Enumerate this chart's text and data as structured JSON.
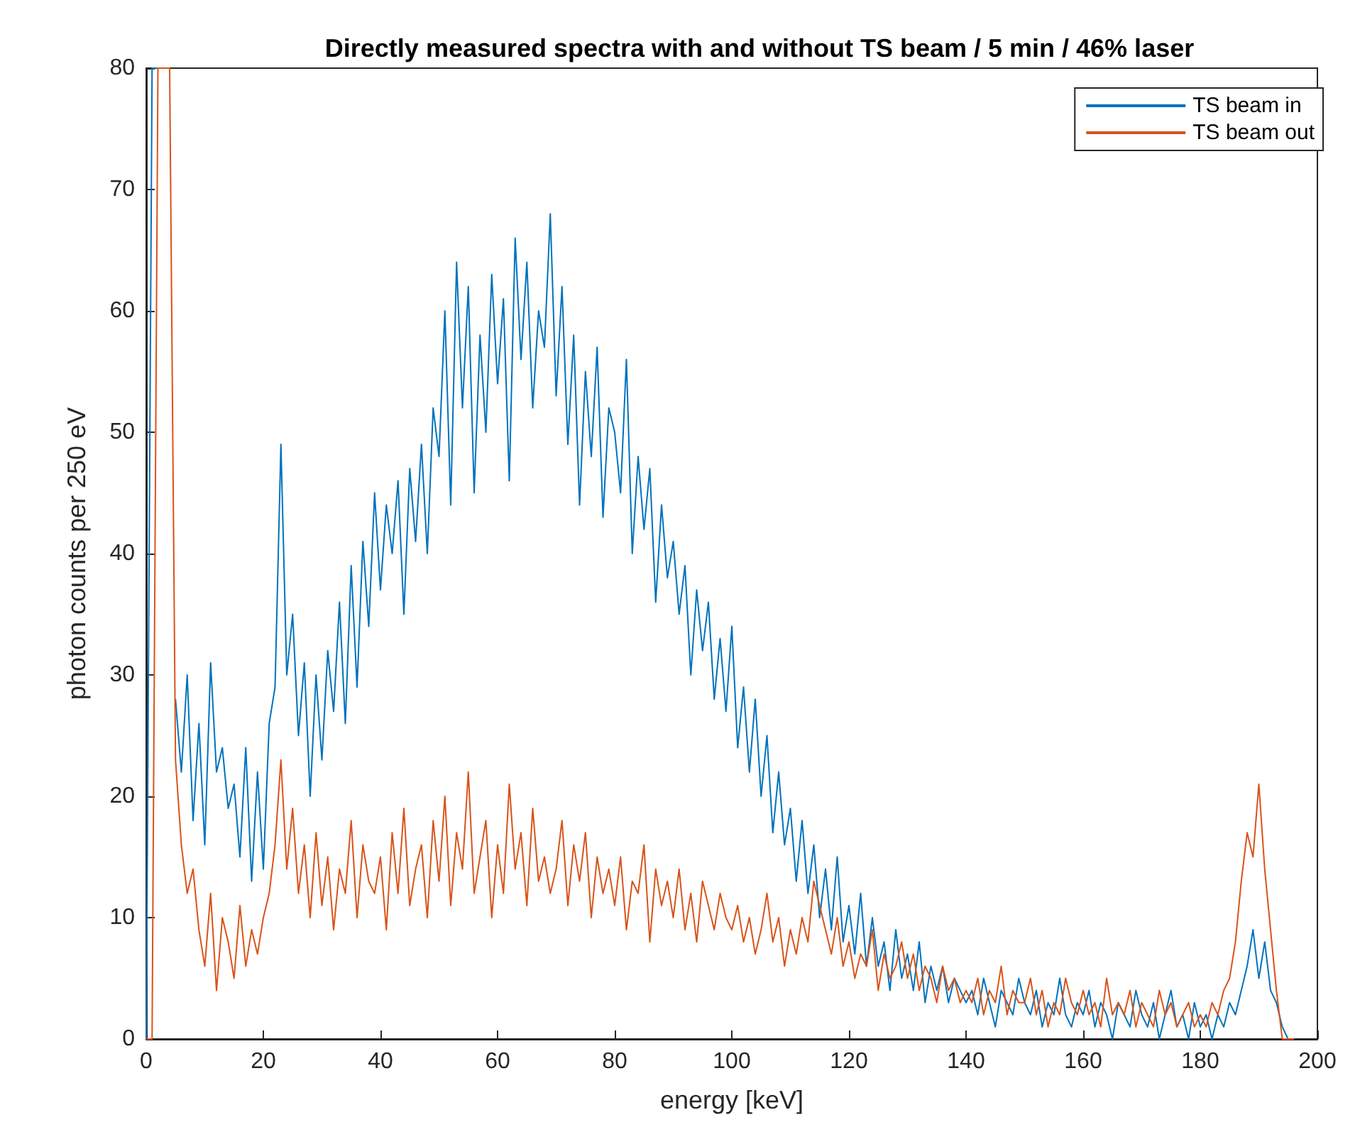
{
  "chart_data": {
    "type": "line",
    "title": "Directly measured spectra with and without TS beam / 5 min / 46% laser",
    "xlabel": "energy [keV]",
    "ylabel": "photon counts per 250 eV",
    "x": [
      0,
      1,
      2,
      3,
      4,
      5,
      6,
      7,
      8,
      9,
      10,
      11,
      12,
      13,
      14,
      15,
      16,
      17,
      18,
      19,
      20,
      21,
      22,
      23,
      24,
      25,
      26,
      27,
      28,
      29,
      30,
      31,
      32,
      33,
      34,
      35,
      36,
      37,
      38,
      39,
      40,
      41,
      42,
      43,
      44,
      45,
      46,
      47,
      48,
      49,
      50,
      51,
      52,
      53,
      54,
      55,
      56,
      57,
      58,
      59,
      60,
      61,
      62,
      63,
      64,
      65,
      66,
      67,
      68,
      69,
      70,
      71,
      72,
      73,
      74,
      75,
      76,
      77,
      78,
      79,
      80,
      81,
      82,
      83,
      84,
      85,
      86,
      87,
      88,
      89,
      90,
      91,
      92,
      93,
      94,
      95,
      96,
      97,
      98,
      99,
      100,
      101,
      102,
      103,
      104,
      105,
      106,
      107,
      108,
      109,
      110,
      111,
      112,
      113,
      114,
      115,
      116,
      117,
      118,
      119,
      120,
      121,
      122,
      123,
      124,
      125,
      126,
      127,
      128,
      129,
      130,
      131,
      132,
      133,
      134,
      135,
      136,
      137,
      138,
      139,
      140,
      141,
      142,
      143,
      144,
      145,
      146,
      147,
      148,
      149,
      150,
      151,
      152,
      153,
      154,
      155,
      156,
      157,
      158,
      159,
      160,
      161,
      162,
      163,
      164,
      165,
      166,
      167,
      168,
      169,
      170,
      171,
      172,
      173,
      174,
      175,
      176,
      177,
      178,
      179,
      180,
      181,
      182,
      183,
      184,
      185,
      186,
      187,
      188,
      189,
      190,
      191,
      192,
      193,
      194,
      195,
      196
    ],
    "series": [
      {
        "name": "TS beam in",
        "color": "#0072bd",
        "values": [
          0,
          80,
          80,
          null,
          null,
          28,
          22,
          30,
          18,
          26,
          16,
          31,
          22,
          24,
          19,
          21,
          15,
          24,
          13,
          22,
          14,
          26,
          29,
          49,
          30,
          35,
          25,
          31,
          20,
          30,
          23,
          32,
          27,
          36,
          26,
          39,
          29,
          41,
          34,
          45,
          37,
          44,
          40,
          46,
          35,
          47,
          41,
          49,
          40,
          52,
          48,
          60,
          44,
          64,
          52,
          62,
          45,
          58,
          50,
          63,
          54,
          61,
          46,
          66,
          56,
          64,
          52,
          60,
          57,
          68,
          53,
          62,
          49,
          58,
          44,
          55,
          48,
          57,
          43,
          52,
          50,
          45,
          56,
          40,
          48,
          42,
          47,
          36,
          44,
          38,
          41,
          35,
          39,
          30,
          37,
          32,
          36,
          28,
          33,
          27,
          34,
          24,
          29,
          22,
          28,
          20,
          25,
          17,
          22,
          16,
          19,
          13,
          18,
          12,
          16,
          10,
          14,
          9,
          15,
          8,
          11,
          7,
          12,
          6,
          10,
          6,
          8,
          4,
          9,
          5,
          7,
          4,
          8,
          3,
          6,
          4,
          6,
          3,
          5,
          4,
          3,
          4,
          2,
          5,
          3,
          1,
          4,
          3,
          2,
          5,
          3,
          2,
          4,
          1,
          3,
          2,
          5,
          2,
          1,
          3,
          2,
          4,
          1,
          3,
          2,
          0,
          3,
          2,
          1,
          4,
          2,
          1,
          3,
          0,
          2,
          4,
          1,
          2,
          0,
          3,
          1,
          2,
          0,
          2,
          1,
          3,
          2,
          4,
          6,
          9,
          5,
          8,
          4,
          3,
          1,
          0,
          0
        ]
      },
      {
        "name": "TS beam out",
        "color": "#d95319",
        "values": [
          0,
          0,
          80,
          80,
          80,
          23,
          16,
          12,
          14,
          9,
          6,
          12,
          4,
          10,
          8,
          5,
          11,
          6,
          9,
          7,
          10,
          12,
          16,
          23,
          14,
          19,
          12,
          16,
          10,
          17,
          11,
          15,
          9,
          14,
          12,
          18,
          10,
          16,
          13,
          12,
          15,
          9,
          17,
          12,
          19,
          11,
          14,
          16,
          10,
          18,
          13,
          20,
          11,
          17,
          14,
          22,
          12,
          15,
          18,
          10,
          16,
          12,
          21,
          14,
          17,
          11,
          19,
          13,
          15,
          12,
          14,
          18,
          11,
          16,
          13,
          17,
          10,
          15,
          12,
          14,
          11,
          15,
          9,
          13,
          12,
          16,
          8,
          14,
          11,
          13,
          10,
          14,
          9,
          12,
          8,
          13,
          11,
          9,
          12,
          10,
          9,
          11,
          8,
          10,
          7,
          9,
          12,
          8,
          10,
          6,
          9,
          7,
          10,
          8,
          13,
          11,
          9,
          7,
          10,
          6,
          8,
          5,
          7,
          6,
          9,
          4,
          7,
          5,
          6,
          8,
          5,
          7,
          4,
          6,
          5,
          3,
          6,
          4,
          5,
          3,
          4,
          3,
          5,
          2,
          4,
          3,
          6,
          2,
          4,
          3,
          3,
          5,
          2,
          4,
          1,
          3,
          2,
          5,
          3,
          2,
          4,
          2,
          3,
          1,
          5,
          2,
          3,
          2,
          4,
          1,
          3,
          2,
          1,
          4,
          2,
          3,
          1,
          2,
          3,
          1,
          2,
          1,
          3,
          2,
          4,
          5,
          8,
          13,
          17,
          15,
          21,
          14,
          9,
          4,
          0,
          0,
          0
        ]
      }
    ],
    "xlim": [
      0,
      200
    ],
    "xticks": [
      0,
      20,
      40,
      60,
      80,
      100,
      120,
      140,
      160,
      180,
      200
    ],
    "ylim": [
      0,
      80
    ],
    "yticks": [
      0,
      10,
      20,
      30,
      40,
      50,
      60,
      70,
      80
    ],
    "legend": "top right",
    "grid": false,
    "marker": "none",
    "line_style": "solid"
  }
}
